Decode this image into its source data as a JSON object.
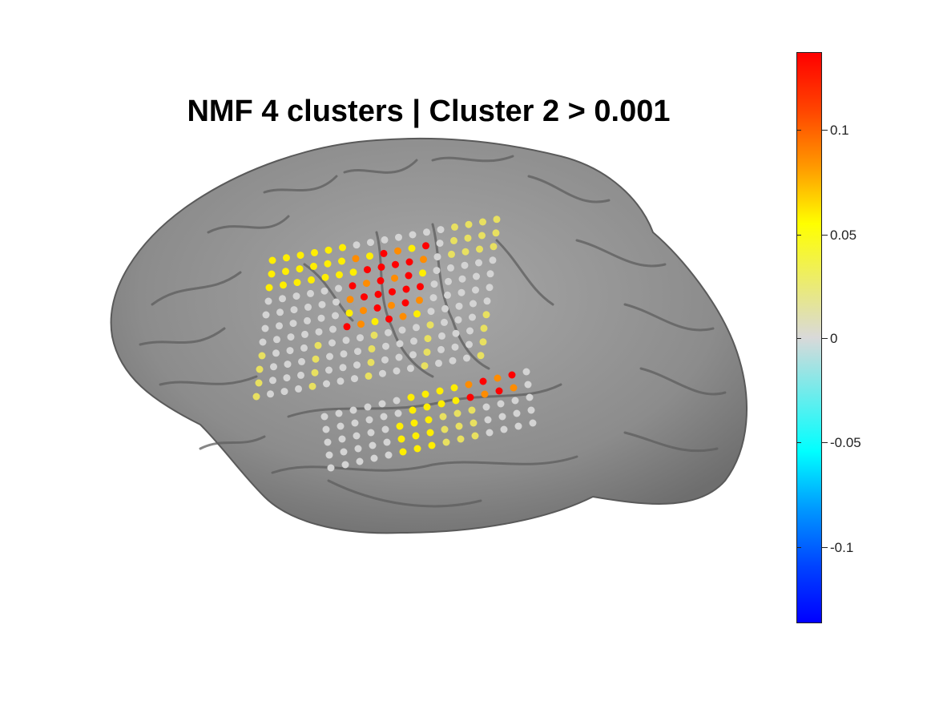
{
  "figure": {
    "title": "NMF 4 clusters | Cluster 2 > 0.001"
  },
  "colorbar": {
    "ticks": [
      "0.1",
      "0.05",
      "0",
      "-0.05",
      "-0.1"
    ],
    "colormap": [
      "#0000ff",
      "#00ffff",
      "#d9d9d9",
      "#ffff00",
      "#ff9900",
      "#ff0000"
    ],
    "range": [
      -0.137,
      0.137
    ]
  },
  "brain": {
    "surface_color": "#8f8f8f"
  }
}
